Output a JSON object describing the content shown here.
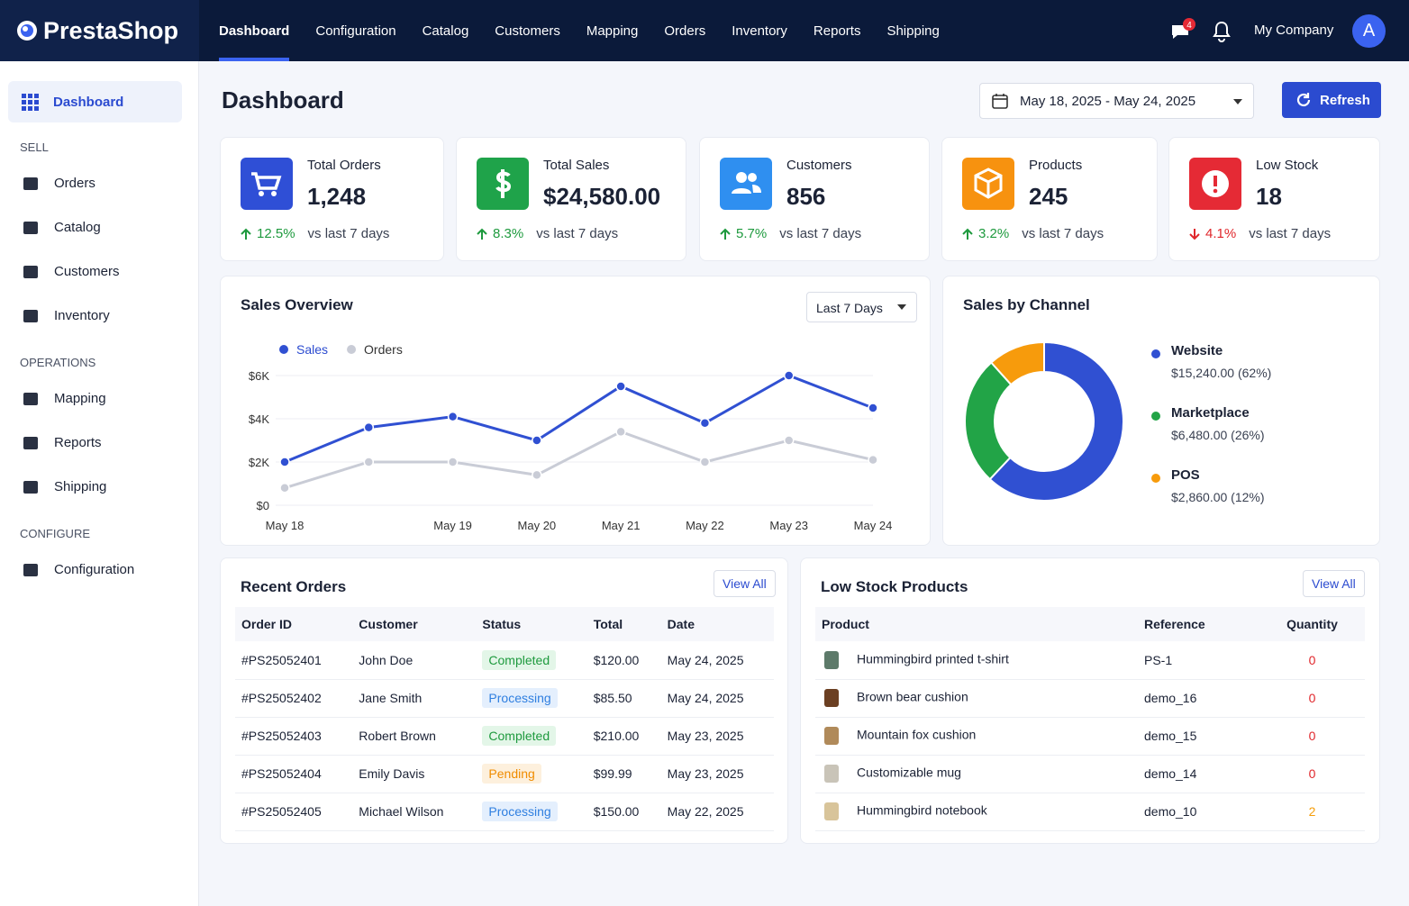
{
  "nav": {
    "brand": "PrestaShop",
    "items": [
      "Dashboard",
      "Configuration",
      "Catalog",
      "Customers",
      "Mapping",
      "Orders",
      "Inventory",
      "Reports",
      "Shipping"
    ],
    "active": 0,
    "notifications": 4,
    "company": "My Company",
    "avatar": "A"
  },
  "sidebar": {
    "top": "Dashboard",
    "sections": [
      {
        "title": "SELL",
        "items": [
          "Orders",
          "Catalog",
          "Customers",
          "Inventory"
        ]
      },
      {
        "title": "OPERATIONS",
        "items": [
          "Mapping",
          "Reports",
          "Shipping"
        ]
      },
      {
        "title": "CONFIGURE",
        "items": [
          "Configuration"
        ]
      }
    ]
  },
  "header": {
    "title": "Dashboard",
    "date_range": "May 18, 2025 - May 24, 2025",
    "refresh": "Refresh"
  },
  "kpis": [
    {
      "label": "Total Orders",
      "value": "1,248",
      "change": "12.5%",
      "trend": "up",
      "compare": "vs last 7 days",
      "color": "#2f4fd6"
    },
    {
      "label": "Total Sales",
      "value": "$24,580.00",
      "change": "8.3%",
      "trend": "up",
      "compare": "vs last 7 days",
      "color": "#1fa34a"
    },
    {
      "label": "Customers",
      "value": "856",
      "change": "5.7%",
      "trend": "up",
      "compare": "vs last 7 days",
      "color": "#2f8ff0"
    },
    {
      "label": "Products",
      "value": "245",
      "change": "3.2%",
      "trend": "up",
      "compare": "vs last 7 days",
      "color": "#f7920f"
    },
    {
      "label": "Low Stock",
      "value": "18",
      "change": "4.1%",
      "trend": "down",
      "compare": "vs last 7 days",
      "color": "#e52a35"
    }
  ],
  "sales_overview": {
    "filter": "Last 7 Days"
  },
  "chart_data": [
    {
      "type": "line",
      "title": "Sales Overview",
      "categories": [
        "May 18",
        null,
        "May 19",
        "May 20",
        "May 21",
        "May 22",
        "May 23",
        "May 24"
      ],
      "series": [
        {
          "name": "Sales",
          "color": "#3050d2",
          "values": [
            2000,
            3600,
            4100,
            3000,
            5500,
            3800,
            6000,
            4500
          ]
        },
        {
          "name": "Orders",
          "color": "#c9ccd6",
          "values": [
            800,
            2000,
            2000,
            1400,
            3400,
            2000,
            3000,
            2100
          ]
        }
      ],
      "ylim": [
        0,
        6000
      ],
      "yticks": [
        {
          "value": 0,
          "label": "$0"
        },
        {
          "value": 2000,
          "label": "$2K"
        },
        {
          "value": 4000,
          "label": "$4K"
        },
        {
          "value": 6000,
          "label": "$6K"
        }
      ],
      "grid": true
    },
    {
      "type": "pie",
      "title": "Sales by Channel",
      "categories": [
        "Website",
        "Marketplace",
        "POS"
      ],
      "values": [
        15240,
        6480,
        2860
      ],
      "value_labels": [
        "$15,240.00 (62%)",
        "$6,480.00 (26%)",
        "$2,860.00 (12%)"
      ],
      "colors": [
        "#3050d2",
        "#22a447",
        "#f79b0c"
      ],
      "donut": true
    }
  ],
  "recent_orders": {
    "title": "Recent Orders",
    "view_all": "View All",
    "columns": [
      "Order ID",
      "Customer",
      "Status",
      "Total",
      "Date"
    ],
    "rows": [
      [
        "#PS25052401",
        "John Doe",
        "Completed",
        "$120.00",
        "May 24, 2025"
      ],
      [
        "#PS25052402",
        "Jane Smith",
        "Processing",
        "$85.50",
        "May 24, 2025"
      ],
      [
        "#PS25052403",
        "Robert Brown",
        "Completed",
        "$210.00",
        "May 23, 2025"
      ],
      [
        "#PS25052404",
        "Emily Davis",
        "Pending",
        "$99.99",
        "May 23, 2025"
      ],
      [
        "#PS25052405",
        "Michael Wilson",
        "Processing",
        "$150.00",
        "May 22, 2025"
      ]
    ],
    "tones": [
      "green",
      "blue",
      "green",
      "orange",
      "blue"
    ]
  },
  "low_stock": {
    "title": "Low Stock Products",
    "view_all": "View All",
    "columns": [
      "Product",
      "Reference",
      "Quantity"
    ],
    "rows": [
      [
        "Hummingbird printed t-shirt",
        "PS-1",
        0
      ],
      [
        "Brown bear cushion",
        "demo_16",
        0
      ],
      [
        "Mountain fox cushion",
        "demo_15",
        0
      ],
      [
        "Customizable mug",
        "demo_14",
        0
      ],
      [
        "Hummingbird notebook",
        "demo_10",
        2
      ]
    ],
    "qty_colors": [
      "#e0262b",
      "#e0262b",
      "#e0262b",
      "#e0262b",
      "#f59e0b"
    ],
    "thumb_colors": [
      "#5d7a6a",
      "#6b3f22",
      "#b08a5a",
      "#c9c4b8",
      "#d8c49a"
    ]
  }
}
